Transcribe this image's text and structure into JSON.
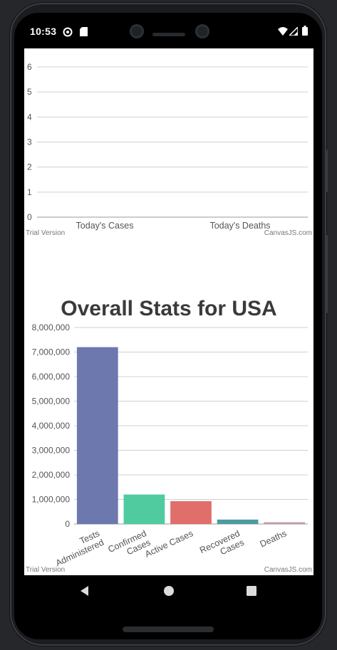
{
  "status_bar": {
    "time": "10:53",
    "left_icons": [
      "dnd-circle-icon",
      "sd-card-icon"
    ],
    "right_icons": [
      "wifi-icon",
      "signal-icon",
      "battery-icon"
    ]
  },
  "charts": {
    "top": {
      "y_ticks": [
        "6",
        "5",
        "4",
        "3",
        "2",
        "1",
        "0"
      ],
      "trial_label": "Trial Version",
      "credit_label": "CanvasJS.com"
    },
    "bottom": {
      "title": "Overall Stats for USA",
      "trial_label": "Trial Version",
      "credit_label": "CanvasJS.com"
    }
  },
  "chart_data": [
    {
      "type": "bar",
      "categories": [
        "Today's Cases",
        "Today's Deaths"
      ],
      "values": [
        0,
        0
      ],
      "ylim": [
        0,
        6
      ],
      "y_ticks": [
        0,
        1,
        2,
        3,
        4,
        5,
        6
      ],
      "grid": true
    },
    {
      "type": "bar",
      "title": "Overall Stats for USA",
      "categories": [
        "Tests Administered",
        "Confirmed Cases",
        "Active Cases",
        "Recovered Cases",
        "Deaths"
      ],
      "values": [
        7200000,
        1200000,
        930000,
        180000,
        70000
      ],
      "ylim": [
        0,
        8000000
      ],
      "y_tick_labels": [
        "0",
        "1,000,000",
        "2,000,000",
        "3,000,000",
        "4,000,000",
        "5,000,000",
        "6,000,000",
        "7,000,000",
        "8,000,000"
      ],
      "category_label_lines": [
        [
          "Tests",
          "Administered"
        ],
        [
          "Confirmed",
          "Cases"
        ],
        [
          "Active Cases"
        ],
        [
          "Recovered",
          "Cases"
        ],
        [
          "Deaths"
        ]
      ],
      "colors": [
        "#6c78ae",
        "#4fcb9f",
        "#e06e6a",
        "#4c9aa0",
        "#c49aa7"
      ],
      "grid": true
    }
  ],
  "navbar": {
    "icons": [
      "back-icon",
      "home-icon",
      "recents-icon"
    ]
  }
}
